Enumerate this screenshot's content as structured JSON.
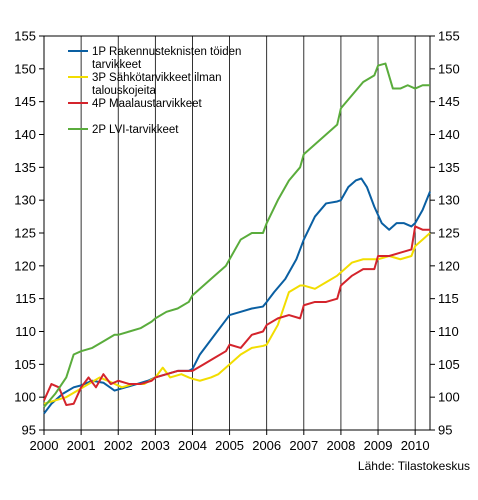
{
  "chart_data": {
    "type": "line",
    "title": "",
    "xlabel": "",
    "ylabel": "",
    "xlim": [
      2000,
      2010.4
    ],
    "ylim": [
      95,
      155
    ],
    "y_ticks": [
      95,
      100,
      105,
      110,
      115,
      120,
      125,
      130,
      135,
      140,
      145,
      150,
      155
    ],
    "x_ticks": [
      2000,
      2001,
      2002,
      2003,
      2004,
      2005,
      2006,
      2007,
      2008,
      2009,
      2010
    ],
    "x_tick_labels": [
      "2000",
      "2001",
      "2002",
      "2003",
      "2004",
      "2005",
      "2006",
      "2007",
      "2008",
      "2009",
      "2010"
    ],
    "grid": "vertical",
    "legend_position": "top-left",
    "source": "Lähde: Tilastokeskus",
    "series": [
      {
        "name": "1P Rakennusteknisten töiden tarvikkeet",
        "color": "#0a5fa2",
        "x": [
          2000.0,
          2000.2,
          2000.5,
          2000.8,
          2001.0,
          2001.3,
          2001.6,
          2001.9,
          2002.2,
          2002.5,
          2002.8,
          2003.0,
          2003.3,
          2003.6,
          2003.9,
          2004.0,
          2004.2,
          2004.4,
          2004.6,
          2004.8,
          2005.0,
          2005.3,
          2005.6,
          2005.9,
          2006.0,
          2006.2,
          2006.5,
          2006.8,
          2007.0,
          2007.3,
          2007.6,
          2007.9,
          2008.0,
          2008.2,
          2008.4,
          2008.55,
          2008.7,
          2008.9,
          2009.1,
          2009.3,
          2009.5,
          2009.7,
          2009.9,
          2010.0,
          2010.2,
          2010.4
        ],
        "y": [
          97.5,
          99,
          100.5,
          101.5,
          101.8,
          102.5,
          102.2,
          101,
          101.5,
          102,
          102.5,
          103,
          103.5,
          104,
          104,
          104.3,
          106.5,
          108,
          109.5,
          111,
          112.5,
          113,
          113.5,
          113.8,
          114.5,
          116,
          118,
          121,
          124,
          127.5,
          129.5,
          129.8,
          130,
          132,
          133,
          133.3,
          132,
          129,
          126.5,
          125.5,
          126.5,
          126.5,
          126,
          126.5,
          128.5,
          131.3
        ]
      },
      {
        "name": "3P Sähkötarvikkeet ilman talouskojeita",
        "color": "#f2dd00",
        "x": [
          2000.0,
          2000.3,
          2000.6,
          2000.9,
          2001.2,
          2001.5,
          2001.8,
          2002.1,
          2002.4,
          2002.7,
          2003.0,
          2003.2,
          2003.4,
          2003.7,
          2003.9,
          2004.0,
          2004.2,
          2004.5,
          2004.7,
          2004.9,
          2005.0,
          2005.3,
          2005.6,
          2005.9,
          2006.0,
          2006.3,
          2006.6,
          2006.9,
          2007.0,
          2007.3,
          2007.6,
          2007.9,
          2008.0,
          2008.3,
          2008.6,
          2008.9,
          2009.0,
          2009.3,
          2009.6,
          2009.9,
          2010.0,
          2010.2,
          2010.4
        ],
        "y": [
          99,
          99.5,
          100,
          101,
          102,
          103,
          102.3,
          101.5,
          102,
          102,
          103,
          104.5,
          103,
          103.5,
          103,
          102.8,
          102.5,
          103,
          103.5,
          104.5,
          105,
          106.5,
          107.5,
          107.8,
          108,
          111,
          116,
          117,
          117,
          116.5,
          117.5,
          118.5,
          119,
          120.5,
          121,
          121,
          121,
          121.5,
          121,
          121.5,
          123,
          124,
          125
        ]
      },
      {
        "name": "4P Maalaustarvikkeet",
        "color": "#d4242c",
        "x": [
          2000.0,
          2000.2,
          2000.4,
          2000.6,
          2000.8,
          2001.0,
          2001.2,
          2001.4,
          2001.6,
          2001.8,
          2002.0,
          2002.3,
          2002.6,
          2002.9,
          2003.0,
          2003.3,
          2003.6,
          2003.9,
          2004.0,
          2004.3,
          2004.6,
          2004.9,
          2005.0,
          2005.3,
          2005.6,
          2005.9,
          2006.0,
          2006.3,
          2006.6,
          2006.9,
          2007.0,
          2007.3,
          2007.6,
          2007.9,
          2008.0,
          2008.3,
          2008.6,
          2008.9,
          2009.0,
          2009.3,
          2009.6,
          2009.9,
          2010.0,
          2010.2,
          2010.4
        ],
        "y": [
          99.5,
          102,
          101.5,
          98.8,
          99,
          101.5,
          103,
          101.5,
          103.5,
          102,
          102.5,
          102,
          102,
          102.5,
          103,
          103.5,
          104,
          104,
          104,
          105,
          106,
          107,
          108,
          107.5,
          109.5,
          110,
          111,
          112,
          112.5,
          112,
          114,
          114.5,
          114.5,
          115,
          117,
          118.5,
          119.5,
          119.5,
          121.5,
          121.5,
          122,
          122.5,
          126,
          125.5,
          125.5
        ]
      },
      {
        "name": "2P LVI-tarvikkeet",
        "color": "#5aac3c",
        "x": [
          2000.0,
          2000.3,
          2000.6,
          2000.8,
          2001.0,
          2001.3,
          2001.6,
          2001.9,
          2002.0,
          2002.3,
          2002.6,
          2002.9,
          2003.0,
          2003.3,
          2003.6,
          2003.9,
          2004.0,
          2004.3,
          2004.6,
          2004.9,
          2005.0,
          2005.3,
          2005.6,
          2005.9,
          2006.0,
          2006.3,
          2006.6,
          2006.9,
          2007.0,
          2007.3,
          2007.6,
          2007.9,
          2008.0,
          2008.3,
          2008.6,
          2008.9,
          2009.0,
          2009.2,
          2009.4,
          2009.6,
          2009.8,
          2010.0,
          2010.2,
          2010.4
        ],
        "y": [
          98.5,
          100.5,
          103,
          106.5,
          107,
          107.5,
          108.5,
          109.5,
          109.5,
          110,
          110.5,
          111.5,
          112,
          113,
          113.5,
          114.5,
          115.5,
          117,
          118.5,
          120,
          121,
          124,
          125,
          125,
          126.5,
          130,
          133,
          135,
          137,
          138.5,
          140,
          141.5,
          144,
          146,
          148,
          149,
          150.5,
          150.8,
          147,
          147,
          147.5,
          147,
          147.5,
          147.5
        ]
      }
    ]
  }
}
